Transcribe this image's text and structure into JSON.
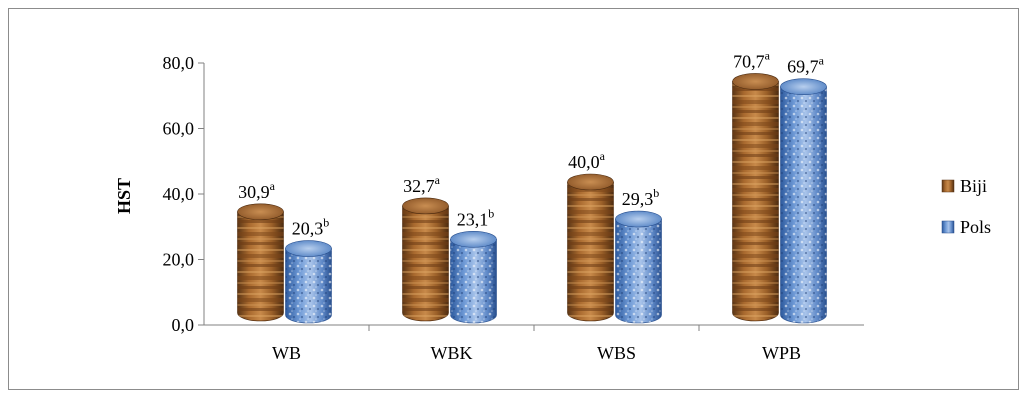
{
  "chart_data": {
    "type": "bar",
    "style": "3d-cylinder",
    "title": "",
    "xlabel": "",
    "ylabel": "HST",
    "ylim": [
      0,
      80
    ],
    "yticks": [
      "0,0",
      "20,0",
      "40,0",
      "60,0",
      "80,0"
    ],
    "categories": [
      "WB",
      "WBK",
      "WBS",
      "WPB"
    ],
    "series": [
      {
        "name": "Biji",
        "values": [
          30.9,
          32.7,
          40.0,
          70.7
        ],
        "labels": [
          "30,9",
          "32,7",
          "40,0",
          "70,7"
        ],
        "superscripts": [
          "a",
          "a",
          "a",
          "a"
        ],
        "color": "#8b5a2b"
      },
      {
        "name": "Pols",
        "values": [
          20.3,
          23.1,
          29.3,
          69.7
        ],
        "labels": [
          "20,3",
          "23,1",
          "29,3",
          "69,7"
        ],
        "superscripts": [
          "b",
          "b",
          "b",
          "a"
        ],
        "color": "#3a6fb8"
      }
    ],
    "legend": "right",
    "grid": false
  }
}
